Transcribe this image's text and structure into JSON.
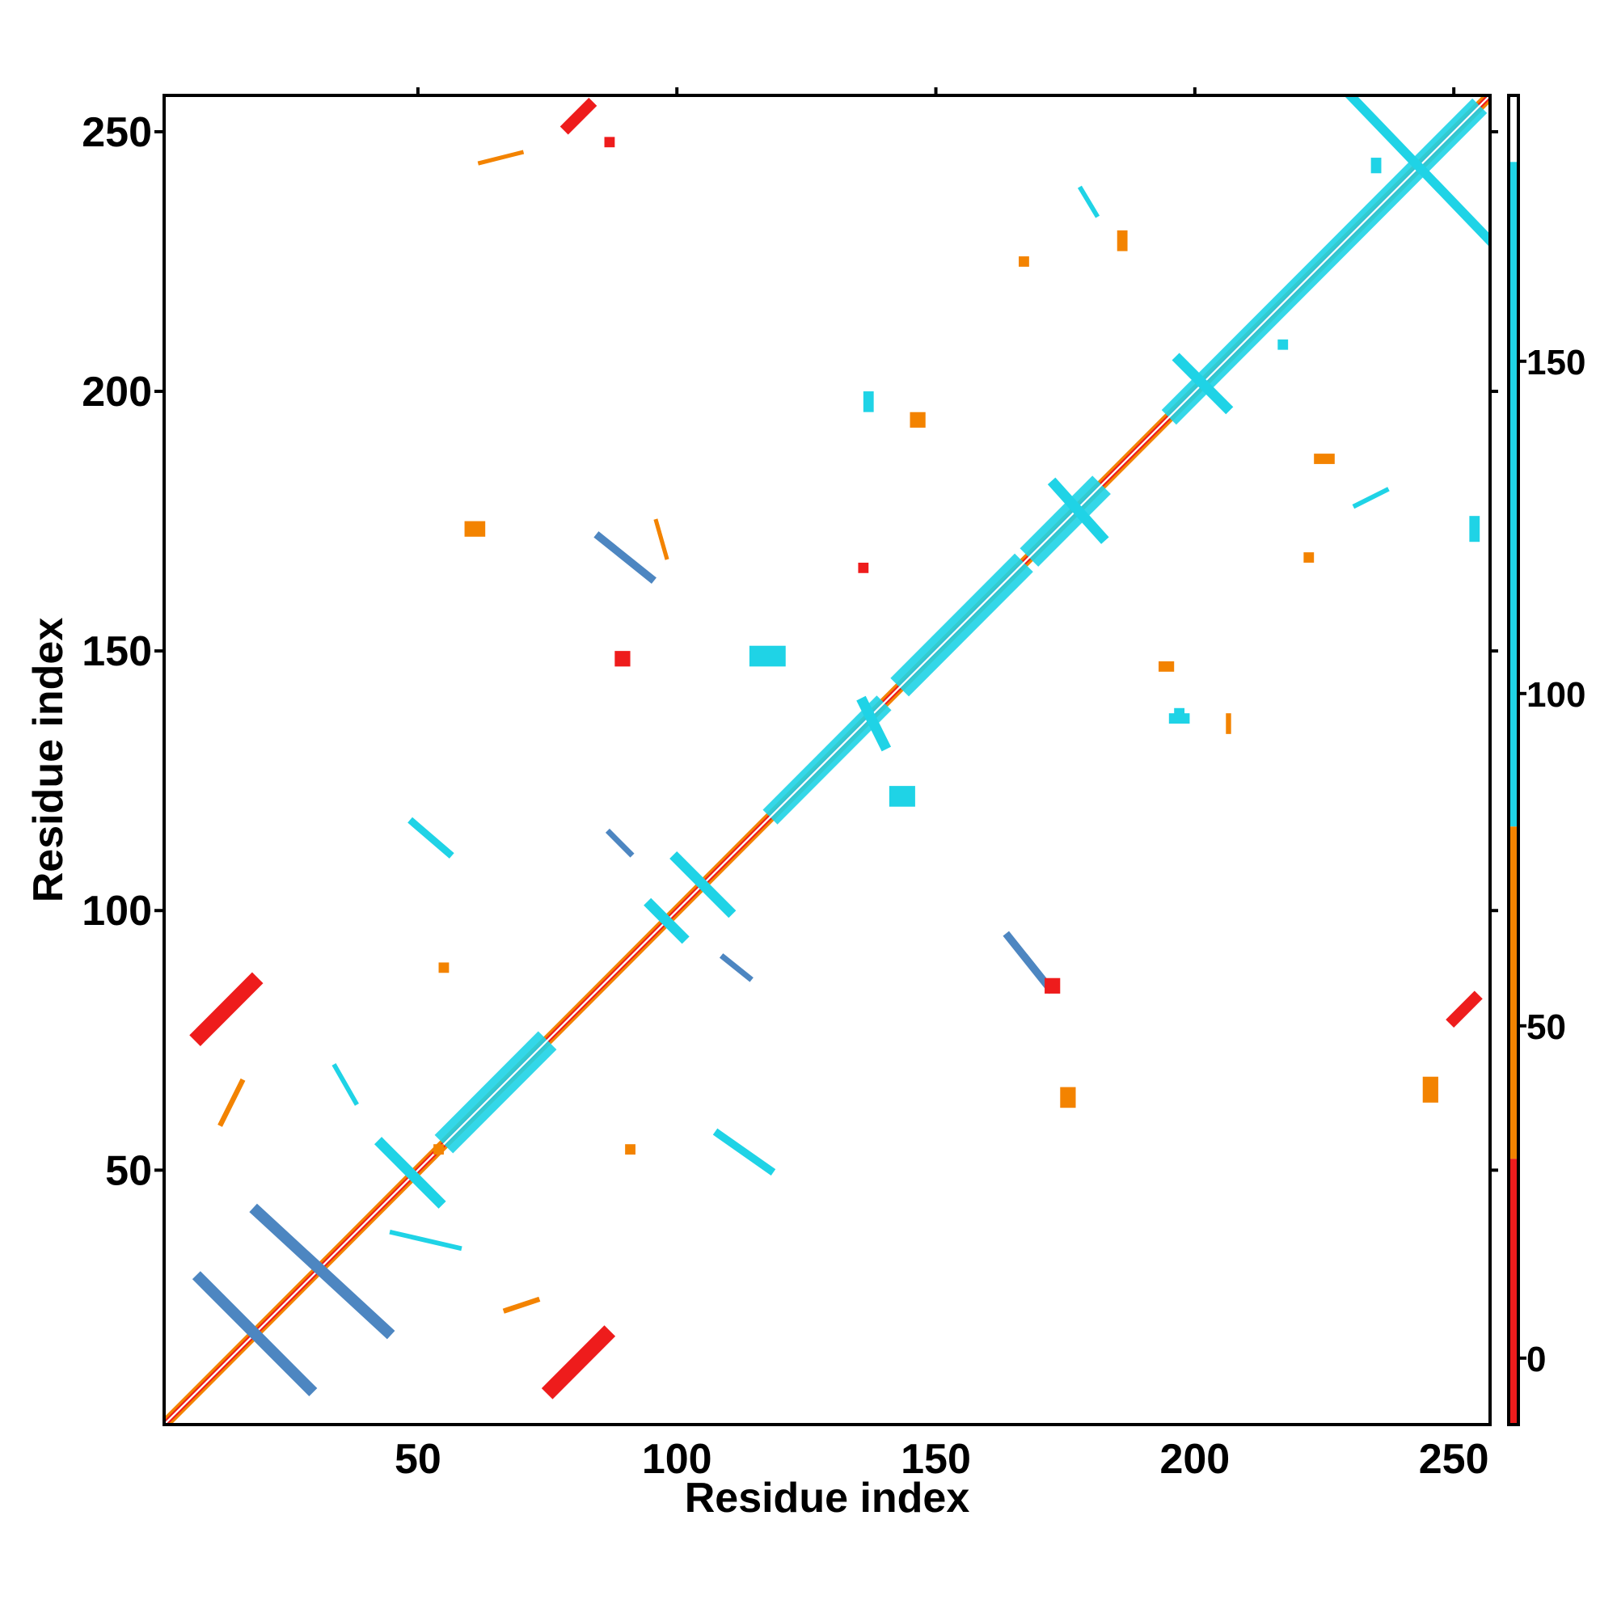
{
  "chart_data": {
    "type": "heatmap",
    "title": "",
    "xlabel": "Residue index",
    "ylabel": "Residue index",
    "xlim": [
      1,
      257
    ],
    "ylim": [
      1,
      257
    ],
    "x_ticks": [
      50,
      100,
      150,
      200,
      250
    ],
    "y_ticks": [
      50,
      100,
      150,
      200,
      250
    ],
    "colorbar": {
      "range": [
        -10,
        190
      ],
      "ticks": [
        0,
        50,
        100,
        150
      ],
      "segments": [
        {
          "from": -10,
          "to": 30,
          "color": "#ee1c1c"
        },
        {
          "from": 30,
          "to": 80,
          "color": "#f38300"
        },
        {
          "from": 80,
          "to": 180,
          "color": "#1fd3e6"
        },
        {
          "from": 180,
          "to": 190,
          "color": "#ffffff"
        }
      ]
    },
    "palette": {
      "red": "#ee1c1c",
      "orange": "#f38300",
      "cyan": "#1fd3e6",
      "steelblue": "#4d86c1"
    },
    "diagonal_bands": [
      {
        "from": 1,
        "to": 257,
        "color": "#f38300",
        "width": 2
      },
      {
        "from": 1,
        "to": 257,
        "color": "#ee1c1c",
        "width": 1
      },
      {
        "from": 55,
        "to": 75,
        "color": "#1fd3e6",
        "width": 5
      },
      {
        "from": 118,
        "to": 140,
        "color": "#1fd3e6",
        "width": 4
      },
      {
        "from": 143,
        "to": 167,
        "color": "#1fd3e6",
        "width": 5
      },
      {
        "from": 168,
        "to": 182,
        "color": "#1fd3e6",
        "width": 5
      },
      {
        "from": 195,
        "to": 255,
        "color": "#1fd3e6",
        "width": 4
      }
    ],
    "contacts": [
      {
        "x1": 8,
        "y1": 29,
        "x2": 29,
        "y2": 8,
        "color": "#4d86c1",
        "width": 2.2
      },
      {
        "x1": 19,
        "y1": 42,
        "x2": 44,
        "y2": 19,
        "color": "#4d86c1",
        "width": 2.2
      },
      {
        "x1": 43,
        "y1": 55,
        "x2": 54,
        "y2": 44,
        "color": "#1fd3e6",
        "width": 2
      },
      {
        "x1": 95,
        "y1": 101,
        "x2": 101,
        "y2": 95,
        "color": "#1fd3e6",
        "width": 2
      },
      {
        "x1": 100,
        "y1": 110,
        "x2": 110,
        "y2": 100,
        "color": "#1fd3e6",
        "width": 2
      },
      {
        "x1": 136,
        "y1": 140,
        "x2": 140,
        "y2": 132,
        "color": "#1fd3e6",
        "width": 2
      },
      {
        "x1": 173,
        "y1": 182,
        "x2": 182,
        "y2": 172,
        "color": "#1fd3e6",
        "width": 2
      },
      {
        "x1": 197,
        "y1": 206,
        "x2": 206,
        "y2": 197,
        "color": "#1fd3e6",
        "width": 2
      },
      {
        "x1": 230,
        "y1": 257,
        "x2": 257,
        "y2": 229,
        "color": "#1fd3e6",
        "width": 1.8
      },
      {
        "x1": 8,
        "y1": 76,
        "x2": 18,
        "y2": 86,
        "color": "#ee1c1c",
        "width": 3
      },
      {
        "x1": 76,
        "y1": 8,
        "x2": 86,
        "y2": 18,
        "color": "#ee1c1c",
        "width": 3
      },
      {
        "x1": 79,
        "y1": 251,
        "x2": 83,
        "y2": 255,
        "color": "#ee1c1c",
        "width": 2.2
      },
      {
        "x1": 250,
        "y1": 79,
        "x2": 254,
        "y2": 83,
        "color": "#ee1c1c",
        "width": 2.2
      },
      {
        "x1": 85,
        "y1": 172,
        "x2": 95,
        "y2": 164,
        "color": "#4d86c1",
        "width": 1.5
      },
      {
        "x1": 164,
        "y1": 95,
        "x2": 172,
        "y2": 85,
        "color": "#4d86c1",
        "width": 1.5
      },
      {
        "x1": 49,
        "y1": 117,
        "x2": 56,
        "y2": 111,
        "color": "#1fd3e6",
        "width": 1.4
      },
      {
        "x1": 108,
        "y1": 57,
        "x2": 118,
        "y2": 50,
        "color": "#1fd3e6",
        "width": 1.5
      },
      {
        "x1": 87,
        "y1": 115,
        "x2": 91,
        "y2": 111,
        "color": "#4d86c1",
        "width": 1.1
      },
      {
        "x1": 109,
        "y1": 91,
        "x2": 114,
        "y2": 87,
        "color": "#4d86c1",
        "width": 1.1
      },
      {
        "x1": 45,
        "y1": 38,
        "x2": 58,
        "y2": 35,
        "color": "#1fd3e6",
        "width": 0.9
      },
      {
        "x1": 34,
        "y1": 70,
        "x2": 38,
        "y2": 63,
        "color": "#1fd3e6",
        "width": 0.9
      },
      {
        "x1": 67,
        "y1": 23,
        "x2": 73,
        "y2": 25,
        "color": "#f38300",
        "width": 1
      },
      {
        "x1": 12,
        "y1": 59,
        "x2": 16,
        "y2": 67,
        "color": "#f38300",
        "width": 1
      },
      {
        "x1": 62,
        "y1": 244,
        "x2": 70,
        "y2": 246,
        "color": "#f38300",
        "width": 0.8
      },
      {
        "x1": 178,
        "y1": 239,
        "x2": 181,
        "y2": 234,
        "color": "#1fd3e6",
        "width": 0.9
      },
      {
        "x1": 231,
        "y1": 178,
        "x2": 237,
        "y2": 181,
        "color": "#1fd3e6",
        "width": 0.9
      },
      {
        "x1": 96,
        "y1": 175,
        "x2": 98,
        "y2": 168,
        "color": "#f38300",
        "width": 0.8
      }
    ],
    "patches": [
      {
        "x": 114,
        "y": 147,
        "w": 7,
        "h": 4,
        "color": "#1fd3e6"
      },
      {
        "x": 141,
        "y": 120,
        "w": 5,
        "h": 4,
        "color": "#1fd3e6"
      },
      {
        "x": 174,
        "y": 62,
        "w": 3,
        "h": 4,
        "color": "#f38300"
      },
      {
        "x": 59,
        "y": 172,
        "w": 4,
        "h": 3,
        "color": "#f38300"
      },
      {
        "x": 171,
        "y": 84,
        "w": 3,
        "h": 3,
        "color": "#ee1c1c"
      },
      {
        "x": 88,
        "y": 147,
        "w": 3,
        "h": 3,
        "color": "#ee1c1c"
      },
      {
        "x": 145,
        "y": 193,
        "w": 3,
        "h": 3,
        "color": "#f38300"
      },
      {
        "x": 193,
        "y": 146,
        "w": 3,
        "h": 2,
        "color": "#f38300"
      },
      {
        "x": 185,
        "y": 227,
        "w": 2,
        "h": 4,
        "color": "#f38300"
      },
      {
        "x": 223,
        "y": 186,
        "w": 4,
        "h": 2,
        "color": "#f38300"
      },
      {
        "x": 166,
        "y": 224,
        "w": 2,
        "h": 2,
        "color": "#f38300"
      },
      {
        "x": 221,
        "y": 167,
        "w": 2,
        "h": 2,
        "color": "#f38300"
      },
      {
        "x": 53,
        "y": 53,
        "w": 2,
        "h": 2,
        "color": "#f38300"
      },
      {
        "x": 54,
        "y": 88,
        "w": 2,
        "h": 2,
        "color": "#f38300"
      },
      {
        "x": 90,
        "y": 53,
        "w": 2,
        "h": 2,
        "color": "#f38300"
      },
      {
        "x": 195,
        "y": 136,
        "w": 4,
        "h": 2,
        "color": "#1fd3e6"
      },
      {
        "x": 136,
        "y": 196,
        "w": 2,
        "h": 4,
        "color": "#1fd3e6"
      },
      {
        "x": 196,
        "y": 137,
        "w": 2,
        "h": 2,
        "color": "#1fd3e6"
      },
      {
        "x": 244,
        "y": 63,
        "w": 3,
        "h": 5,
        "color": "#f38300"
      },
      {
        "x": 206,
        "y": 134,
        "w": 1,
        "h": 4,
        "color": "#f38300"
      },
      {
        "x": 86,
        "y": 247,
        "w": 2,
        "h": 2,
        "color": "#ee1c1c"
      },
      {
        "x": 135,
        "y": 165,
        "w": 2,
        "h": 2,
        "color": "#ee1c1c"
      },
      {
        "x": 216,
        "y": 208,
        "w": 2,
        "h": 2,
        "color": "#1fd3e6"
      },
      {
        "x": 234,
        "y": 242,
        "w": 2,
        "h": 3,
        "color": "#1fd3e6"
      },
      {
        "x": 253,
        "y": 171,
        "w": 2,
        "h": 5,
        "color": "#1fd3e6"
      }
    ]
  }
}
